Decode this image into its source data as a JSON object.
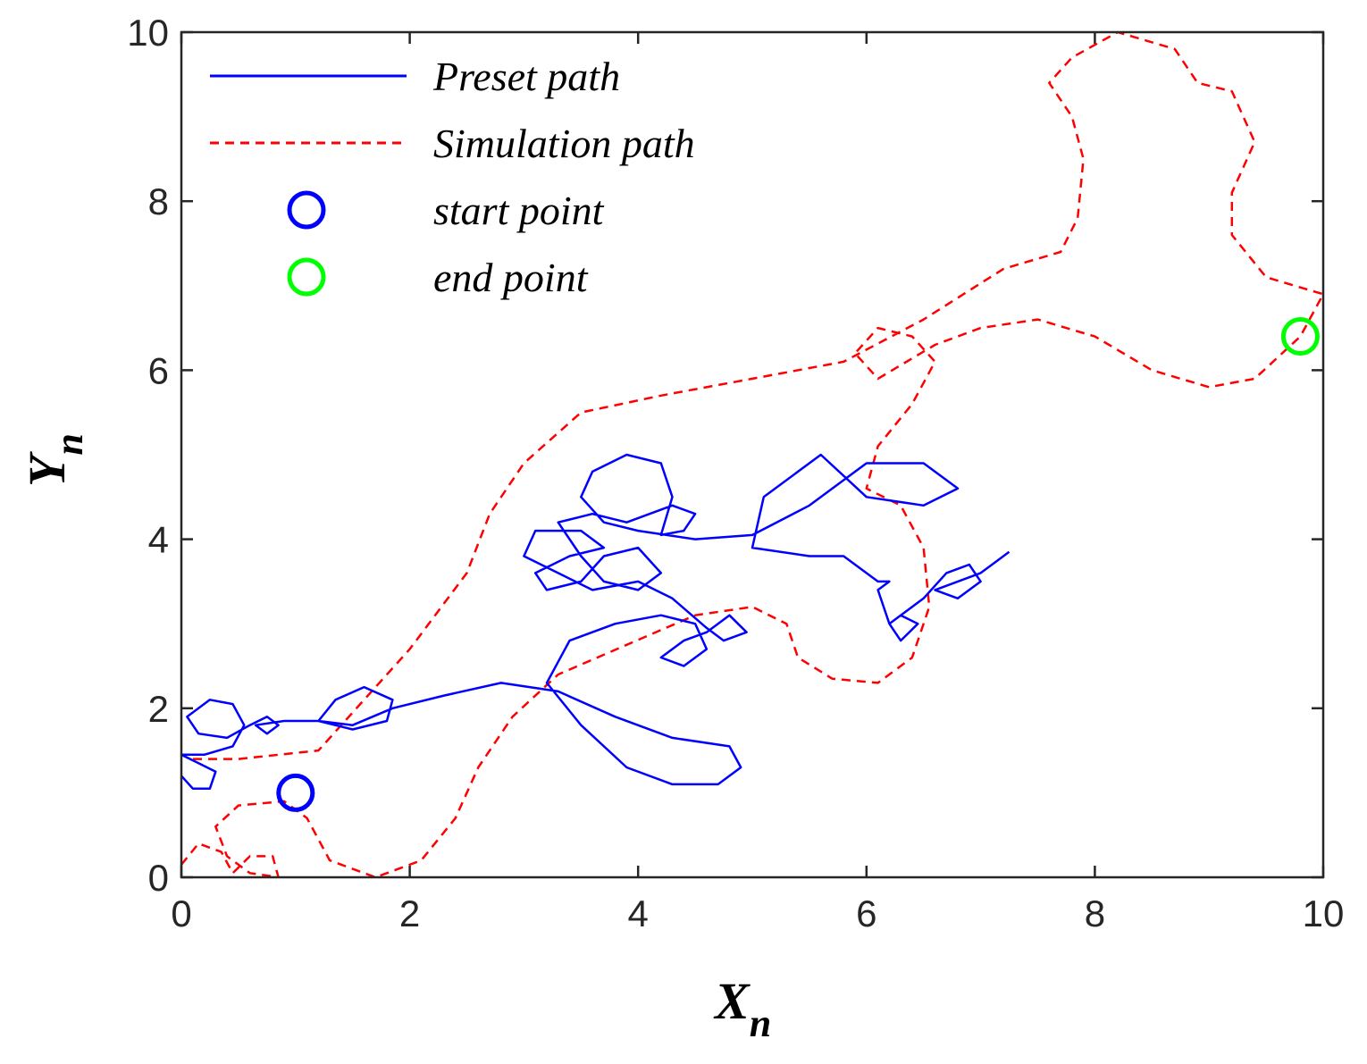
{
  "chart_data": {
    "type": "line",
    "xlabel": "X",
    "xlabel_subscript": "n",
    "ylabel": "Y",
    "ylabel_subscript": "n",
    "xlim": [
      0,
      10
    ],
    "ylim": [
      0,
      10
    ],
    "xticks": [
      0,
      2,
      4,
      6,
      8,
      10
    ],
    "yticks": [
      0,
      2,
      4,
      6,
      8,
      10
    ],
    "grid": false,
    "legend": "upper left",
    "series": [
      {
        "name": "Preset path",
        "color": "#0000ff",
        "style": "solid",
        "x": [
          0.0,
          0.1,
          0.25,
          0.3,
          0.15,
          0.0,
          0.2,
          0.45,
          0.55,
          0.45,
          0.25,
          0.05,
          0.15,
          0.4,
          0.6,
          0.75,
          0.85,
          0.75,
          0.65,
          0.9,
          1.2,
          1.5,
          1.8,
          1.85,
          1.6,
          1.35,
          1.2,
          1.5,
          1.85,
          2.3,
          2.8,
          3.3,
          3.8,
          4.3,
          4.8,
          4.9,
          4.7,
          4.3,
          3.9,
          3.5,
          3.2,
          3.4,
          3.8,
          4.2,
          4.5,
          4.6,
          4.4,
          4.2,
          4.4,
          4.6,
          4.8,
          4.95,
          4.75,
          4.6,
          4.3,
          4.0,
          3.6,
          3.3,
          3.0,
          3.1,
          3.5,
          3.7,
          3.4,
          3.1,
          3.2,
          3.5,
          3.7,
          4.0,
          4.2,
          4.0,
          3.7,
          3.5,
          3.3,
          3.6,
          3.9,
          4.3,
          4.5,
          4.4,
          4.2,
          4.3,
          4.2,
          3.9,
          3.6,
          3.5,
          3.7,
          4.0,
          4.5,
          5.0,
          5.5,
          6.0,
          6.5,
          6.8,
          6.5,
          6.0,
          5.6,
          5.1,
          5.0,
          5.5,
          5.8,
          6.1,
          6.2,
          6.1,
          6.2,
          6.3,
          6.45,
          6.3,
          6.2,
          6.5,
          6.7,
          6.9,
          7.0,
          6.8,
          6.6,
          7.0,
          7.25
        ],
        "y": [
          1.2,
          1.05,
          1.05,
          1.25,
          1.35,
          1.45,
          1.45,
          1.55,
          1.8,
          2.05,
          2.1,
          1.9,
          1.7,
          1.65,
          1.8,
          1.9,
          1.8,
          1.7,
          1.8,
          1.85,
          1.85,
          1.75,
          1.85,
          2.1,
          2.25,
          2.1,
          1.85,
          1.8,
          2.0,
          2.15,
          2.3,
          2.2,
          1.9,
          1.65,
          1.55,
          1.3,
          1.1,
          1.1,
          1.3,
          1.8,
          2.3,
          2.8,
          3.0,
          3.1,
          3.0,
          2.7,
          2.5,
          2.6,
          2.8,
          2.9,
          3.1,
          2.9,
          2.8,
          2.95,
          3.3,
          3.5,
          3.4,
          3.6,
          3.8,
          4.1,
          4.1,
          3.9,
          3.8,
          3.6,
          3.4,
          3.5,
          3.8,
          3.9,
          3.6,
          3.4,
          3.5,
          3.8,
          4.2,
          4.3,
          4.2,
          4.4,
          4.3,
          4.1,
          4.05,
          4.5,
          4.9,
          5.0,
          4.8,
          4.5,
          4.2,
          4.1,
          4.0,
          4.05,
          4.4,
          4.9,
          4.9,
          4.6,
          4.4,
          4.5,
          5.0,
          4.5,
          3.9,
          3.8,
          3.8,
          3.5,
          3.5,
          3.4,
          3.0,
          2.8,
          3.0,
          3.1,
          3.0,
          3.3,
          3.6,
          3.7,
          3.5,
          3.3,
          3.4,
          3.6,
          3.85
        ]
      },
      {
        "name": "Simulation path",
        "color": "#ff0000",
        "style": "dashed",
        "x": [
          0.0,
          0.15,
          0.35,
          0.45,
          0.6,
          0.8,
          0.85,
          0.6,
          0.4,
          0.3,
          0.5,
          0.9,
          1.1,
          1.3,
          1.7,
          2.1,
          2.4,
          2.6,
          2.9,
          3.3,
          3.9,
          4.5,
          5.0,
          5.3,
          5.4,
          5.7,
          6.1,
          6.4,
          6.55,
          6.5,
          6.3,
          6.0,
          6.1,
          6.4,
          6.6,
          6.4,
          6.1,
          5.9,
          6.1,
          6.6,
          7.0,
          7.5,
          8.0,
          8.5,
          9.0,
          9.4,
          9.8,
          10.0,
          9.5,
          9.2,
          9.2,
          9.4,
          9.2,
          8.9,
          8.7,
          8.2,
          7.8,
          7.6,
          7.8,
          7.9,
          7.85,
          7.7,
          7.2,
          6.5,
          5.8,
          5.0,
          4.2,
          3.5,
          3.0,
          2.7,
          2.5,
          2.0,
          1.2,
          0.5,
          0.1
        ],
        "y": [
          0.15,
          0.4,
          0.3,
          0.05,
          0.25,
          0.25,
          0.0,
          0.05,
          0.25,
          0.6,
          0.85,
          0.9,
          0.7,
          0.2,
          0.0,
          0.2,
          0.7,
          1.3,
          1.9,
          2.4,
          2.75,
          3.1,
          3.2,
          3.0,
          2.6,
          2.35,
          2.3,
          2.6,
          3.2,
          3.9,
          4.4,
          4.6,
          5.1,
          5.6,
          6.1,
          6.4,
          6.5,
          6.2,
          5.9,
          6.3,
          6.5,
          6.6,
          6.4,
          6.0,
          5.8,
          5.9,
          6.4,
          6.9,
          7.1,
          7.6,
          8.1,
          8.7,
          9.3,
          9.4,
          9.8,
          10.0,
          9.7,
          9.4,
          9.0,
          8.5,
          7.8,
          7.4,
          7.2,
          6.6,
          6.1,
          5.9,
          5.7,
          5.5,
          4.9,
          4.3,
          3.6,
          2.7,
          1.5,
          1.4,
          1.4
        ]
      },
      {
        "name": "start point",
        "color": "#0000ff",
        "marker": "circle",
        "x": [
          1.0
        ],
        "y": [
          1.0
        ]
      },
      {
        "name": "end point",
        "color": "#00ff00",
        "marker": "circle",
        "x": [
          9.8
        ],
        "y": [
          6.4
        ]
      }
    ]
  }
}
